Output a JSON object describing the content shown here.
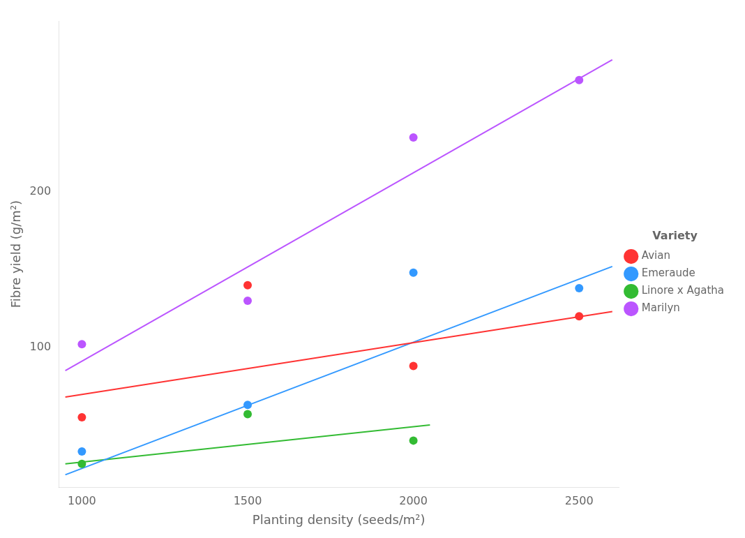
{
  "chart_data": {
    "type": "scatter",
    "xlabel": "Planting density (seeds/m²)",
    "ylabel": "Fibre yield (g/m²)",
    "legend_title": "Variety",
    "legend": "right",
    "grid": false,
    "xlim": [
      930,
      2620
    ],
    "xticks": [
      1000,
      1500,
      2000,
      2500
    ],
    "ylim": [
      10,
      310
    ],
    "yticks": [
      100,
      200
    ],
    "series": [
      {
        "name": "Avian",
        "color": "#ff3333",
        "x": [
          1000,
          1500,
          2000,
          2500
        ],
        "values": [
          55,
          140,
          88,
          120
        ],
        "trend_x": [
          950,
          2600
        ],
        "trend_values": [
          68,
          123
        ]
      },
      {
        "name": "Emeraude",
        "color": "#3399ff",
        "x": [
          1000,
          1500,
          2000,
          2500
        ],
        "values": [
          33,
          63,
          148,
          138
        ],
        "trend_x": [
          950,
          2600
        ],
        "trend_values": [
          18,
          152
        ]
      },
      {
        "name": "Linore x Agatha",
        "color": "#33bb33",
        "x": [
          1000,
          1500,
          2000
        ],
        "values": [
          25,
          57,
          40
        ],
        "trend_x": [
          950,
          2050
        ],
        "trend_values": [
          25,
          50
        ]
      },
      {
        "name": "Marilyn",
        "color": "#bb55ff",
        "x": [
          1000,
          1500,
          2000,
          2500
        ],
        "values": [
          102,
          130,
          235,
          272
        ],
        "trend_x": [
          950,
          2600
        ],
        "trend_values": [
          85,
          285
        ]
      }
    ]
  }
}
